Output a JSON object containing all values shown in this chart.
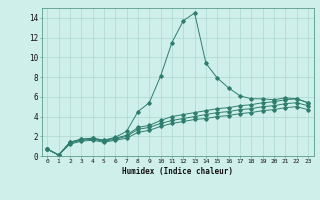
{
  "xlabel": "Humidex (Indice chaleur)",
  "ylabel": "",
  "background_color": "#cff0ea",
  "line_color": "#2e7d6e",
  "grid_color": "#aad8d0",
  "xlim": [
    -0.5,
    23.5
  ],
  "ylim": [
    0,
    15
  ],
  "xticks": [
    0,
    1,
    2,
    3,
    4,
    5,
    6,
    7,
    8,
    9,
    10,
    11,
    12,
    13,
    14,
    15,
    16,
    17,
    18,
    19,
    20,
    21,
    22,
    23
  ],
  "yticks": [
    0,
    2,
    4,
    6,
    8,
    10,
    12,
    14
  ],
  "series": [
    [
      0.7,
      0.1,
      1.4,
      1.7,
      1.8,
      1.6,
      1.9,
      2.5,
      4.5,
      5.4,
      8.1,
      11.5,
      13.7,
      14.5,
      9.4,
      7.9,
      6.9,
      6.1,
      5.8,
      5.8,
      5.7,
      5.9,
      5.8,
      5.4
    ],
    [
      0.7,
      0.1,
      1.4,
      1.7,
      1.8,
      1.6,
      1.8,
      2.1,
      2.9,
      3.1,
      3.6,
      4.0,
      4.2,
      4.4,
      4.6,
      4.8,
      4.9,
      5.1,
      5.2,
      5.4,
      5.5,
      5.7,
      5.8,
      5.4
    ],
    [
      0.7,
      0.1,
      1.3,
      1.6,
      1.7,
      1.5,
      1.7,
      2.0,
      2.7,
      2.9,
      3.3,
      3.6,
      3.8,
      4.0,
      4.2,
      4.4,
      4.5,
      4.7,
      4.8,
      5.0,
      5.1,
      5.3,
      5.4,
      5.1
    ],
    [
      0.7,
      0.1,
      1.2,
      1.5,
      1.6,
      1.4,
      1.6,
      1.8,
      2.4,
      2.6,
      3.0,
      3.3,
      3.5,
      3.7,
      3.8,
      4.0,
      4.1,
      4.3,
      4.4,
      4.6,
      4.7,
      4.9,
      5.0,
      4.7
    ]
  ]
}
